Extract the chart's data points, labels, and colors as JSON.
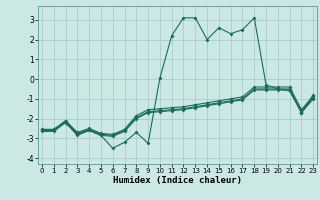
{
  "xlabel": "Humidex (Indice chaleur)",
  "bg_color": "#cce8e4",
  "grid_color": "#aacccc",
  "line_color": "#1a6b5a",
  "x_values": [
    0,
    1,
    2,
    3,
    4,
    5,
    6,
    7,
    8,
    9,
    10,
    11,
    12,
    13,
    14,
    15,
    16,
    17,
    18,
    19,
    20,
    21,
    22,
    23
  ],
  "line1_y": [
    -2.55,
    -2.55,
    -2.2,
    -2.85,
    -2.6,
    -2.85,
    -3.5,
    -3.2,
    -2.7,
    -3.25,
    0.05,
    2.2,
    3.1,
    3.1,
    2.0,
    2.6,
    2.3,
    2.5,
    3.1,
    -0.3,
    -0.5,
    -0.6,
    -1.7,
    -0.8
  ],
  "line2_y": [
    -2.55,
    -2.55,
    -2.1,
    -2.7,
    -2.5,
    -2.75,
    -2.8,
    -2.55,
    -1.85,
    -1.55,
    -1.5,
    -1.45,
    -1.4,
    -1.3,
    -1.2,
    -1.1,
    -1.0,
    -0.9,
    -0.4,
    -0.4,
    -0.4,
    -0.4,
    -1.55,
    -0.85
  ],
  "line3_y": [
    -2.6,
    -2.6,
    -2.15,
    -2.75,
    -2.55,
    -2.8,
    -2.85,
    -2.6,
    -1.95,
    -1.65,
    -1.6,
    -1.55,
    -1.5,
    -1.4,
    -1.3,
    -1.2,
    -1.1,
    -1.0,
    -0.5,
    -0.5,
    -0.5,
    -0.5,
    -1.65,
    -0.95
  ],
  "line4_y": [
    -2.65,
    -2.65,
    -2.2,
    -2.8,
    -2.6,
    -2.85,
    -2.9,
    -2.65,
    -2.0,
    -1.7,
    -1.65,
    -1.6,
    -1.55,
    -1.45,
    -1.35,
    -1.25,
    -1.15,
    -1.05,
    -0.55,
    -0.55,
    -0.55,
    -0.55,
    -1.7,
    -1.0
  ],
  "xlim": [
    -0.3,
    23.3
  ],
  "ylim": [
    -4.3,
    3.7
  ],
  "yticks": [
    -4,
    -3,
    -2,
    -1,
    0,
    1,
    2,
    3
  ],
  "xticks": [
    0,
    1,
    2,
    3,
    4,
    5,
    6,
    7,
    8,
    9,
    10,
    11,
    12,
    13,
    14,
    15,
    16,
    17,
    18,
    19,
    20,
    21,
    22,
    23
  ]
}
